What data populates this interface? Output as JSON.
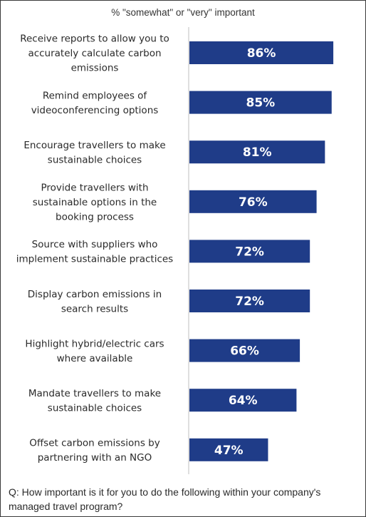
{
  "chart_data": {
    "type": "bar",
    "orientation": "horizontal",
    "subtitle": "% \"somewhat\" or \"very\" important",
    "categories": [
      "Receive reports to allow you to accurately calculate carbon emissions",
      "Remind employees of videoconferencing options",
      "Encourage travellers to make sustainable choices",
      "Provide travellers with sustainable options in the booking process",
      "Source with suppliers who implement sustainable practices",
      "Display carbon emissions in search results",
      "Highlight hybrid/electric cars where available",
      "Mandate travellers to make sustainable choices",
      "Offset carbon emissions by partnering with an NGO"
    ],
    "category_lines": [
      [
        "Receive reports to allow you to",
        "accurately calculate carbon",
        "emissions"
      ],
      [
        "Remind employees of",
        "videoconferencing options"
      ],
      [
        "Encourage travellers to make",
        "sustainable choices"
      ],
      [
        "Provide travellers with",
        "sustainable options in the",
        "booking process"
      ],
      [
        "Source with suppliers who",
        "implement sustainable practices"
      ],
      [
        "Display carbon emissions in",
        "search results"
      ],
      [
        "Highlight hybrid/electric cars",
        "where available"
      ],
      [
        "Mandate travellers to make",
        "sustainable choices"
      ],
      [
        "Offset carbon emissions by",
        "partnering with an NGO"
      ]
    ],
    "values": [
      86,
      85,
      81,
      76,
      72,
      72,
      66,
      64,
      47
    ],
    "value_labels": [
      "86%",
      "85%",
      "81%",
      "76%",
      "72%",
      "72%",
      "66%",
      "64%",
      "47%"
    ],
    "unit": "%",
    "bar_color": "#1f3c88",
    "axis_color": "#bfbfbf",
    "grid": false,
    "legend": "none"
  },
  "question": "Q: How important is it for you to do the following within your company's managed travel program?"
}
